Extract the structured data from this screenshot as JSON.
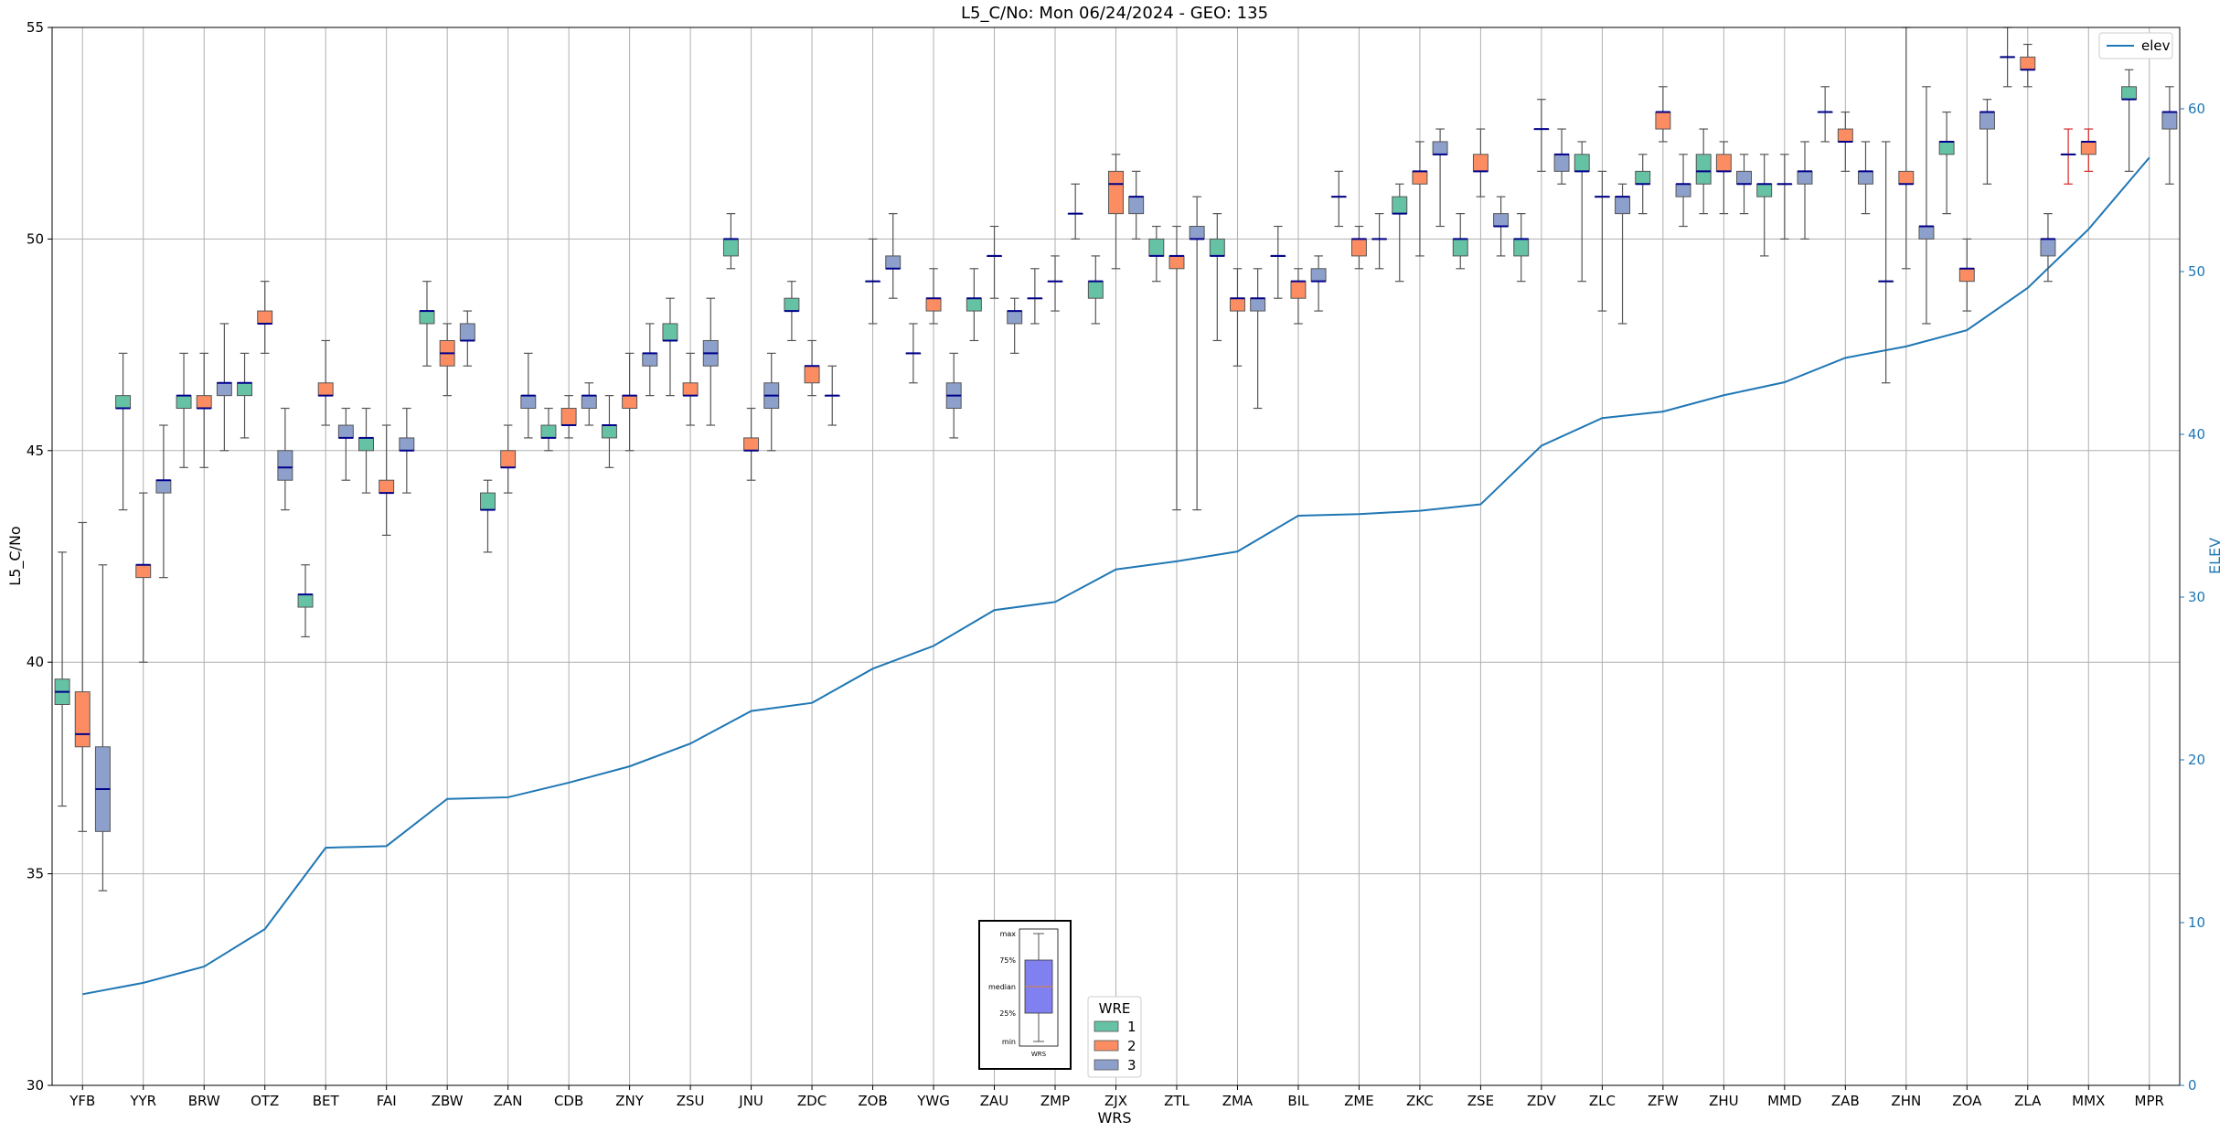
{
  "chart_data": {
    "type": "box+line",
    "title": "L5_C/No: Mon 06/24/2024 - GEO: 135",
    "xlabel": "WRS",
    "ylabel": "L5_C/No",
    "ylabel_right": "ELEV",
    "ylim": [
      30,
      55
    ],
    "ylim_right": [
      0,
      65
    ],
    "yticks": [
      30,
      35,
      40,
      45,
      50,
      55
    ],
    "yticks_right": [
      0,
      10,
      20,
      30,
      40,
      50,
      60
    ],
    "grid": true,
    "categories": [
      "YFB",
      "YYR",
      "BRW",
      "OTZ",
      "BET",
      "FAI",
      "ZBW",
      "ZAN",
      "CDB",
      "ZNY",
      "ZSU",
      "JNU",
      "ZDC",
      "ZOB",
      "YWG",
      "ZAU",
      "ZMP",
      "ZJX",
      "ZTL",
      "ZMA",
      "BIL",
      "ZME",
      "ZKC",
      "ZSE",
      "ZDV",
      "ZLC",
      "ZFW",
      "ZHU",
      "MMD",
      "ZAB",
      "ZHN",
      "ZOA",
      "ZLA",
      "MMX",
      "MPR"
    ],
    "colors": {
      "wre1": "#66c2a5",
      "wre2": "#fc8d62",
      "wre3": "#8da0cb",
      "median": "#00008b",
      "whisker": "#555555",
      "elev": "#1f77b4",
      "outlier_whisker": "#d62728"
    },
    "wre_legend": {
      "title": "WRE",
      "labels": [
        "1",
        "2",
        "3"
      ]
    },
    "elev_legend": "elev",
    "inset_legend": {
      "labels": [
        "max",
        "75%",
        "median",
        "25%",
        "min"
      ],
      "xlabel": "WRS"
    },
    "boxes": [
      {
        "cat": "YFB",
        "wre": 1,
        "min": 36.6,
        "q1": 39.0,
        "med": 39.3,
        "q3": 39.6,
        "max": 42.6
      },
      {
        "cat": "YFB",
        "wre": 2,
        "min": 36.0,
        "q1": 38.0,
        "med": 38.3,
        "q3": 39.3,
        "max": 43.3
      },
      {
        "cat": "YFB",
        "wre": 3,
        "min": 34.6,
        "q1": 36.0,
        "med": 37.0,
        "q3": 38.0,
        "max": 42.3
      },
      {
        "cat": "YYR",
        "wre": 1,
        "min": 43.6,
        "q1": 46.0,
        "med": 46.0,
        "q3": 46.3,
        "max": 47.3
      },
      {
        "cat": "YYR",
        "wre": 2,
        "min": 40.0,
        "q1": 42.0,
        "med": 42.3,
        "q3": 42.3,
        "max": 44.0
      },
      {
        "cat": "YYR",
        "wre": 3,
        "min": 42.0,
        "q1": 44.0,
        "med": 44.3,
        "q3": 44.3,
        "max": 45.6
      },
      {
        "cat": "BRW",
        "wre": 1,
        "min": 44.6,
        "q1": 46.0,
        "med": 46.3,
        "q3": 46.3,
        "max": 47.3
      },
      {
        "cat": "BRW",
        "wre": 2,
        "min": 44.6,
        "q1": 46.0,
        "med": 46.0,
        "q3": 46.3,
        "max": 47.3
      },
      {
        "cat": "BRW",
        "wre": 3,
        "min": 45.0,
        "q1": 46.3,
        "med": 46.6,
        "q3": 46.6,
        "max": 48.0
      },
      {
        "cat": "OTZ",
        "wre": 1,
        "min": 45.3,
        "q1": 46.3,
        "med": 46.6,
        "q3": 46.6,
        "max": 47.3
      },
      {
        "cat": "OTZ",
        "wre": 2,
        "min": 47.3,
        "q1": 48.0,
        "med": 48.0,
        "q3": 48.3,
        "max": 49.0
      },
      {
        "cat": "OTZ",
        "wre": 3,
        "min": 43.6,
        "q1": 44.3,
        "med": 44.6,
        "q3": 45.0,
        "max": 46.0
      },
      {
        "cat": "BET",
        "wre": 1,
        "min": 40.6,
        "q1": 41.3,
        "med": 41.6,
        "q3": 41.6,
        "max": 42.3
      },
      {
        "cat": "BET",
        "wre": 2,
        "min": 45.6,
        "q1": 46.3,
        "med": 46.3,
        "q3": 46.6,
        "max": 47.6
      },
      {
        "cat": "BET",
        "wre": 3,
        "min": 44.3,
        "q1": 45.3,
        "med": 45.3,
        "q3": 45.6,
        "max": 46.0
      },
      {
        "cat": "FAI",
        "wre": 1,
        "min": 44.0,
        "q1": 45.0,
        "med": 45.3,
        "q3": 45.3,
        "max": 46.0
      },
      {
        "cat": "FAI",
        "wre": 2,
        "min": 43.0,
        "q1": 44.0,
        "med": 44.0,
        "q3": 44.3,
        "max": 45.6
      },
      {
        "cat": "FAI",
        "wre": 3,
        "min": 44.0,
        "q1": 45.0,
        "med": 45.0,
        "q3": 45.3,
        "max": 46.0
      },
      {
        "cat": "ZBW",
        "wre": 1,
        "min": 47.0,
        "q1": 48.0,
        "med": 48.3,
        "q3": 48.3,
        "max": 49.0
      },
      {
        "cat": "ZBW",
        "wre": 2,
        "min": 46.3,
        "q1": 47.0,
        "med": 47.3,
        "q3": 47.6,
        "max": 48.0
      },
      {
        "cat": "ZBW",
        "wre": 3,
        "min": 47.0,
        "q1": 47.6,
        "med": 47.6,
        "q3": 48.0,
        "max": 48.3
      },
      {
        "cat": "ZAN",
        "wre": 1,
        "min": 42.6,
        "q1": 43.6,
        "med": 43.6,
        "q3": 44.0,
        "max": 44.3
      },
      {
        "cat": "ZAN",
        "wre": 2,
        "min": 44.0,
        "q1": 44.6,
        "med": 44.6,
        "q3": 45.0,
        "max": 45.6
      },
      {
        "cat": "ZAN",
        "wre": 3,
        "min": 45.3,
        "q1": 46.0,
        "med": 46.3,
        "q3": 46.3,
        "max": 47.3
      },
      {
        "cat": "CDB",
        "wre": 1,
        "min": 45.0,
        "q1": 45.3,
        "med": 45.3,
        "q3": 45.6,
        "max": 46.0
      },
      {
        "cat": "CDB",
        "wre": 2,
        "min": 45.3,
        "q1": 45.6,
        "med": 45.6,
        "q3": 46.0,
        "max": 46.3
      },
      {
        "cat": "CDB",
        "wre": 3,
        "min": 45.6,
        "q1": 46.0,
        "med": 46.3,
        "q3": 46.3,
        "max": 46.6
      },
      {
        "cat": "ZNY",
        "wre": 1,
        "min": 44.6,
        "q1": 45.3,
        "med": 45.6,
        "q3": 45.6,
        "max": 46.3
      },
      {
        "cat": "ZNY",
        "wre": 2,
        "min": 45.0,
        "q1": 46.0,
        "med": 46.3,
        "q3": 46.3,
        "max": 47.3
      },
      {
        "cat": "ZNY",
        "wre": 3,
        "min": 46.3,
        "q1": 47.0,
        "med": 47.3,
        "q3": 47.3,
        "max": 48.0
      },
      {
        "cat": "ZSU",
        "wre": 1,
        "min": 46.3,
        "q1": 47.6,
        "med": 47.6,
        "q3": 48.0,
        "max": 48.6
      },
      {
        "cat": "ZSU",
        "wre": 2,
        "min": 45.6,
        "q1": 46.3,
        "med": 46.3,
        "q3": 46.6,
        "max": 47.3
      },
      {
        "cat": "ZSU",
        "wre": 3,
        "min": 45.6,
        "q1": 47.0,
        "med": 47.3,
        "q3": 47.6,
        "max": 48.6
      },
      {
        "cat": "JNU",
        "wre": 1,
        "min": 49.3,
        "q1": 49.6,
        "med": 50.0,
        "q3": 50.0,
        "max": 50.6
      },
      {
        "cat": "JNU",
        "wre": 2,
        "min": 44.3,
        "q1": 45.0,
        "med": 45.0,
        "q3": 45.3,
        "max": 46.0
      },
      {
        "cat": "JNU",
        "wre": 3,
        "min": 45.0,
        "q1": 46.0,
        "med": 46.3,
        "q3": 46.6,
        "max": 47.3
      },
      {
        "cat": "ZDC",
        "wre": 1,
        "min": 47.6,
        "q1": 48.3,
        "med": 48.3,
        "q3": 48.6,
        "max": 49.0
      },
      {
        "cat": "ZDC",
        "wre": 2,
        "min": 46.3,
        "q1": 46.6,
        "med": 47.0,
        "q3": 47.0,
        "max": 47.6
      },
      {
        "cat": "ZDC",
        "wre": 3,
        "min": 45.6,
        "q1": 46.3,
        "med": 46.3,
        "q3": 46.3,
        "max": 47.0
      },
      {
        "cat": "ZOB",
        "wre": 2,
        "min": 48.0,
        "q1": 49.0,
        "med": 49.0,
        "q3": 49.0,
        "max": 50.0
      },
      {
        "cat": "ZOB",
        "wre": 3,
        "min": 48.6,
        "q1": 49.3,
        "med": 49.3,
        "q3": 49.6,
        "max": 50.6
      },
      {
        "cat": "YWG",
        "wre": 1,
        "min": 46.6,
        "q1": 47.3,
        "med": 47.3,
        "q3": 47.3,
        "max": 48.0
      },
      {
        "cat": "YWG",
        "wre": 2,
        "min": 48.0,
        "q1": 48.3,
        "med": 48.6,
        "q3": 48.6,
        "max": 49.3
      },
      {
        "cat": "YWG",
        "wre": 3,
        "min": 45.3,
        "q1": 46.0,
        "med": 46.3,
        "q3": 46.6,
        "max": 47.3
      },
      {
        "cat": "ZAU",
        "wre": 1,
        "min": 47.6,
        "q1": 48.3,
        "med": 48.6,
        "q3": 48.6,
        "max": 49.3
      },
      {
        "cat": "ZAU",
        "wre": 2,
        "min": 48.6,
        "q1": 49.6,
        "med": 49.6,
        "q3": 49.6,
        "max": 50.3
      },
      {
        "cat": "ZAU",
        "wre": 3,
        "min": 47.3,
        "q1": 48.0,
        "med": 48.3,
        "q3": 48.3,
        "max": 48.6
      },
      {
        "cat": "ZMP",
        "wre": 1,
        "min": 48.0,
        "q1": 48.6,
        "med": 48.6,
        "q3": 48.6,
        "max": 49.3
      },
      {
        "cat": "ZMP",
        "wre": 2,
        "min": 48.3,
        "q1": 49.0,
        "med": 49.0,
        "q3": 49.0,
        "max": 49.6
      },
      {
        "cat": "ZMP",
        "wre": 3,
        "min": 50.0,
        "q1": 50.6,
        "med": 50.6,
        "q3": 50.6,
        "max": 51.3
      },
      {
        "cat": "ZJX",
        "wre": 1,
        "min": 48.0,
        "q1": 48.6,
        "med": 49.0,
        "q3": 49.0,
        "max": 49.6
      },
      {
        "cat": "ZJX",
        "wre": 2,
        "min": 49.3,
        "q1": 50.6,
        "med": 51.3,
        "q3": 51.6,
        "max": 52.0
      },
      {
        "cat": "ZJX",
        "wre": 3,
        "min": 50.0,
        "q1": 50.6,
        "med": 51.0,
        "q3": 51.0,
        "max": 51.6
      },
      {
        "cat": "ZTL",
        "wre": 1,
        "min": 49.0,
        "q1": 49.6,
        "med": 49.6,
        "q3": 50.0,
        "max": 50.3
      },
      {
        "cat": "ZTL",
        "wre": 2,
        "min": 43.6,
        "q1": 49.3,
        "med": 49.6,
        "q3": 49.6,
        "max": 50.3
      },
      {
        "cat": "ZTL",
        "wre": 3,
        "min": 43.6,
        "q1": 50.0,
        "med": 50.0,
        "q3": 50.3,
        "max": 51.0
      },
      {
        "cat": "ZMA",
        "wre": 1,
        "min": 47.6,
        "q1": 49.6,
        "med": 49.6,
        "q3": 50.0,
        "max": 50.6
      },
      {
        "cat": "ZMA",
        "wre": 2,
        "min": 47.0,
        "q1": 48.3,
        "med": 48.6,
        "q3": 48.6,
        "max": 49.3
      },
      {
        "cat": "ZMA",
        "wre": 3,
        "min": 46.0,
        "q1": 48.3,
        "med": 48.6,
        "q3": 48.6,
        "max": 49.3
      },
      {
        "cat": "BIL",
        "wre": 1,
        "min": 48.6,
        "q1": 49.6,
        "med": 49.6,
        "q3": 49.6,
        "max": 50.3
      },
      {
        "cat": "BIL",
        "wre": 2,
        "min": 48.0,
        "q1": 48.6,
        "med": 49.0,
        "q3": 49.0,
        "max": 49.3
      },
      {
        "cat": "BIL",
        "wre": 3,
        "min": 48.3,
        "q1": 49.0,
        "med": 49.0,
        "q3": 49.3,
        "max": 49.6
      },
      {
        "cat": "ZME",
        "wre": 1,
        "min": 50.3,
        "q1": 51.0,
        "med": 51.0,
        "q3": 51.0,
        "max": 51.6
      },
      {
        "cat": "ZME",
        "wre": 2,
        "min": 49.3,
        "q1": 49.6,
        "med": 50.0,
        "q3": 50.0,
        "max": 50.3
      },
      {
        "cat": "ZME",
        "wre": 3,
        "min": 49.3,
        "q1": 50.0,
        "med": 50.0,
        "q3": 50.0,
        "max": 50.6
      },
      {
        "cat": "ZKC",
        "wre": 1,
        "min": 49.0,
        "q1": 50.6,
        "med": 50.6,
        "q3": 51.0,
        "max": 51.3
      },
      {
        "cat": "ZKC",
        "wre": 2,
        "min": 49.6,
        "q1": 51.3,
        "med": 51.6,
        "q3": 51.6,
        "max": 52.3
      },
      {
        "cat": "ZKC",
        "wre": 3,
        "min": 50.3,
        "q1": 52.0,
        "med": 52.0,
        "q3": 52.3,
        "max": 52.6
      },
      {
        "cat": "ZSE",
        "wre": 1,
        "min": 49.3,
        "q1": 49.6,
        "med": 50.0,
        "q3": 50.0,
        "max": 50.6
      },
      {
        "cat": "ZSE",
        "wre": 2,
        "min": 51.0,
        "q1": 51.6,
        "med": 51.6,
        "q3": 52.0,
        "max": 52.6
      },
      {
        "cat": "ZSE",
        "wre": 3,
        "min": 49.6,
        "q1": 50.3,
        "med": 50.3,
        "q3": 50.6,
        "max": 51.0
      },
      {
        "cat": "ZDV",
        "wre": 1,
        "min": 49.0,
        "q1": 49.6,
        "med": 50.0,
        "q3": 50.0,
        "max": 50.6
      },
      {
        "cat": "ZDV",
        "wre": 2,
        "min": 51.6,
        "q1": 52.6,
        "med": 52.6,
        "q3": 52.6,
        "max": 53.3
      },
      {
        "cat": "ZDV",
        "wre": 3,
        "min": 51.3,
        "q1": 51.6,
        "med": 52.0,
        "q3": 52.0,
        "max": 52.6
      },
      {
        "cat": "ZLC",
        "wre": 1,
        "min": 49.0,
        "q1": 51.6,
        "med": 51.6,
        "q3": 52.0,
        "max": 52.3
      },
      {
        "cat": "ZLC",
        "wre": 2,
        "min": 48.3,
        "q1": 51.0,
        "med": 51.0,
        "q3": 51.0,
        "max": 51.6
      },
      {
        "cat": "ZLC",
        "wre": 3,
        "min": 48.0,
        "q1": 50.6,
        "med": 51.0,
        "q3": 51.0,
        "max": 51.3
      },
      {
        "cat": "ZFW",
        "wre": 1,
        "min": 50.6,
        "q1": 51.3,
        "med": 51.3,
        "q3": 51.6,
        "max": 52.0
      },
      {
        "cat": "ZFW",
        "wre": 2,
        "min": 52.3,
        "q1": 52.6,
        "med": 53.0,
        "q3": 53.0,
        "max": 53.6
      },
      {
        "cat": "ZFW",
        "wre": 3,
        "min": 50.3,
        "q1": 51.0,
        "med": 51.3,
        "q3": 51.3,
        "max": 52.0
      },
      {
        "cat": "ZHU",
        "wre": 1,
        "min": 50.6,
        "q1": 51.3,
        "med": 51.6,
        "q3": 52.0,
        "max": 52.6
      },
      {
        "cat": "ZHU",
        "wre": 2,
        "min": 50.6,
        "q1": 51.6,
        "med": 51.6,
        "q3": 52.0,
        "max": 52.3
      },
      {
        "cat": "ZHU",
        "wre": 3,
        "min": 50.6,
        "q1": 51.3,
        "med": 51.3,
        "q3": 51.6,
        "max": 52.0
      },
      {
        "cat": "MMD",
        "wre": 1,
        "min": 49.6,
        "q1": 51.0,
        "med": 51.3,
        "q3": 51.3,
        "max": 52.0
      },
      {
        "cat": "MMD",
        "wre": 2,
        "min": 50.0,
        "q1": 51.3,
        "med": 51.3,
        "q3": 51.3,
        "max": 52.0
      },
      {
        "cat": "MMD",
        "wre": 3,
        "min": 50.0,
        "q1": 51.3,
        "med": 51.6,
        "q3": 51.6,
        "max": 52.3
      },
      {
        "cat": "ZAB",
        "wre": 1,
        "min": 52.3,
        "q1": 53.0,
        "med": 53.0,
        "q3": 53.0,
        "max": 53.6
      },
      {
        "cat": "ZAB",
        "wre": 2,
        "min": 51.6,
        "q1": 52.3,
        "med": 52.3,
        "q3": 52.6,
        "max": 53.0
      },
      {
        "cat": "ZAB",
        "wre": 3,
        "min": 50.6,
        "q1": 51.3,
        "med": 51.6,
        "q3": 51.6,
        "max": 52.3
      },
      {
        "cat": "ZHN",
        "wre": 1,
        "min": 46.6,
        "q1": 49.0,
        "med": 49.0,
        "q3": 49.0,
        "max": 52.3
      },
      {
        "cat": "ZHN",
        "wre": 2,
        "min": 49.3,
        "q1": 51.3,
        "med": 51.3,
        "q3": 51.6,
        "max": 55.0
      },
      {
        "cat": "ZHN",
        "wre": 3,
        "min": 48.0,
        "q1": 50.0,
        "med": 50.3,
        "q3": 50.3,
        "max": 53.6
      },
      {
        "cat": "ZOA",
        "wre": 1,
        "min": 50.6,
        "q1": 52.0,
        "med": 52.3,
        "q3": 52.3,
        "max": 53.0
      },
      {
        "cat": "ZOA",
        "wre": 2,
        "min": 48.3,
        "q1": 49.0,
        "med": 49.3,
        "q3": 49.3,
        "max": 50.0
      },
      {
        "cat": "ZOA",
        "wre": 3,
        "min": 51.3,
        "q1": 52.6,
        "med": 53.0,
        "q3": 53.0,
        "max": 53.3
      },
      {
        "cat": "ZLA",
        "wre": 1,
        "min": 53.6,
        "q1": 54.3,
        "med": 54.3,
        "q3": 54.3,
        "max": 55.0
      },
      {
        "cat": "ZLA",
        "wre": 2,
        "min": 53.6,
        "q1": 54.0,
        "med": 54.0,
        "q3": 54.3,
        "max": 54.6
      },
      {
        "cat": "ZLA",
        "wre": 3,
        "min": 49.0,
        "q1": 49.6,
        "med": 50.0,
        "q3": 50.0,
        "max": 50.6
      },
      {
        "cat": "MMX",
        "wre": 1,
        "min": 51.3,
        "q1": 52.0,
        "med": 52.0,
        "q3": 52.0,
        "max": 52.6
      },
      {
        "cat": "MMX",
        "wre": 2,
        "min": 51.6,
        "q1": 52.0,
        "med": 52.3,
        "q3": 52.3,
        "max": 52.6
      },
      {
        "cat": "MPR",
        "wre": 1,
        "min": 51.6,
        "q1": 53.3,
        "med": 53.3,
        "q3": 53.6,
        "max": 54.0
      },
      {
        "cat": "MPR",
        "wre": 3,
        "min": 51.3,
        "q1": 52.6,
        "med": 53.0,
        "q3": 53.0,
        "max": 53.6
      }
    ],
    "elev": [
      5.6,
      6.3,
      7.3,
      9.6,
      14.6,
      14.7,
      17.6,
      17.7,
      18.6,
      19.6,
      21.0,
      23.0,
      23.5,
      25.6,
      27.0,
      29.2,
      29.7,
      31.7,
      32.2,
      32.8,
      35.0,
      35.1,
      35.3,
      35.7,
      39.3,
      41.0,
      41.4,
      42.4,
      43.2,
      44.7,
      45.4,
      46.4,
      49.0,
      52.6,
      57.0
    ]
  }
}
